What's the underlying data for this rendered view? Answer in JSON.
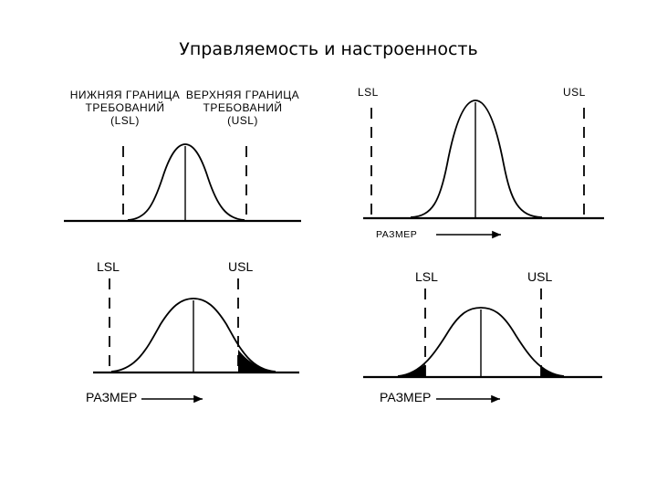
{
  "title": "Управляемость и настроенность",
  "panels": [
    {
      "id": "top-left",
      "lsl_label": "НИЖНЯЯ ГРАНИЦА\nТРЕБОВАНИЙ\n(LSL)",
      "usl_label": "ВЕРХНЯЯ ГРАНИЦА\nТРЕБОВАНИЙ\n(USL)"
    },
    {
      "id": "top-right",
      "lsl_label": "LSL",
      "usl_label": "USL",
      "axis_label": "РАЗМЕР"
    },
    {
      "id": "bottom-left",
      "lsl_label": "LSL",
      "usl_label": "USL",
      "axis_label": "РАЗМЕР"
    },
    {
      "id": "bottom-right",
      "lsl_label": "LSL",
      "usl_label": "USL",
      "axis_label": "РАЗМЕР"
    }
  ]
}
